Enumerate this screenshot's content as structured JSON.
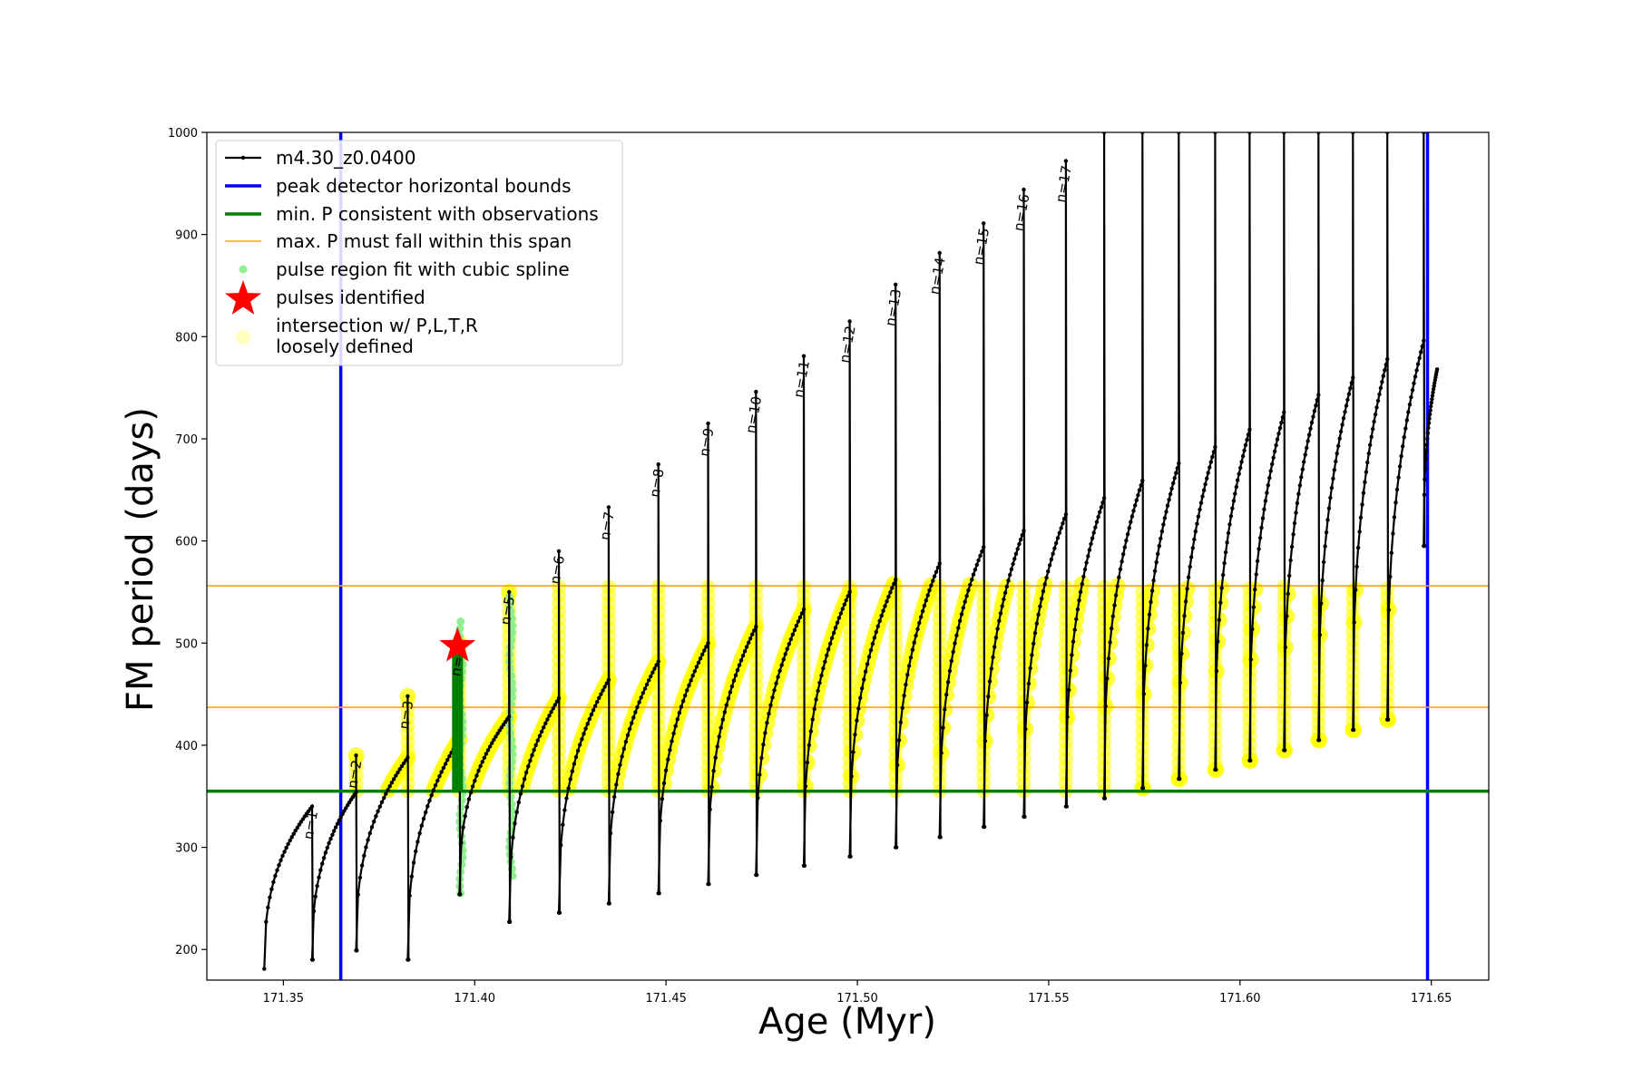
{
  "chart_data": {
    "type": "line",
    "xlabel": "Age (Myr)",
    "ylabel": "FM period (days)",
    "xlim": [
      171.33,
      171.665
    ],
    "ylim": [
      170,
      1000
    ],
    "x_ticks": [
      "171.35",
      "171.40",
      "171.45",
      "171.50",
      "171.55",
      "171.60",
      "171.65"
    ],
    "x_tick_values": [
      171.35,
      171.4,
      171.45,
      171.5,
      171.55,
      171.6,
      171.65
    ],
    "y_ticks": [
      "200",
      "300",
      "400",
      "500",
      "600",
      "700",
      "800",
      "900",
      "1000"
    ],
    "y_tick_values": [
      200,
      300,
      400,
      500,
      600,
      700,
      800,
      900,
      1000
    ],
    "grid": false,
    "legend_position": "top-left",
    "legend": [
      {
        "label": "m4.30_z0.0400",
        "style": "line-dot",
        "color": "#000000"
      },
      {
        "label": "peak detector horizontal bounds",
        "style": "line-thick",
        "color": "#0000ff"
      },
      {
        "label": "min. P consistent with observations",
        "style": "line-thick",
        "color": "#008000"
      },
      {
        "label": "max. P must fall within this span",
        "style": "line-thin",
        "color": "#ffa500"
      },
      {
        "label": "pulse region fit with cubic spline",
        "style": "dot",
        "color": "#90ee90"
      },
      {
        "label": "pulses identified",
        "style": "star",
        "color": "#ff0000"
      },
      {
        "label": "intersection w/ P,L,T,R\nloosely defined",
        "style": "big-dot",
        "color": "#ffffc0"
      }
    ],
    "reference_lines": {
      "vertical_bounds": [
        171.365,
        171.649
      ],
      "min_period": 355,
      "max_period_span": [
        437,
        556
      ]
    },
    "series_name": "m4.30_z0.0400",
    "pulses": [
      {
        "label": "n=1",
        "x_start": 171.345,
        "x_end": 171.3575,
        "min": 181,
        "base_peak": 340,
        "spike": 340
      },
      {
        "label": "n=2",
        "x_start": 171.3575,
        "x_end": 171.369,
        "min": 190,
        "base_peak": 354,
        "spike": 390
      },
      {
        "label": "n=3",
        "x_start": 171.369,
        "x_end": 171.3825,
        "min": 199,
        "base_peak": 388,
        "spike": 448
      },
      {
        "label": "n=4",
        "x_start": 171.3825,
        "x_end": 171.396,
        "min": 190,
        "base_peak": 406,
        "spike": 500
      },
      {
        "label": "n=5",
        "x_start": 171.396,
        "x_end": 171.409,
        "min": 254,
        "base_peak": 428,
        "spike": 550
      },
      {
        "label": "n=6",
        "x_start": 171.409,
        "x_end": 171.422,
        "min": 227,
        "base_peak": 446,
        "spike": 590
      },
      {
        "label": "n=7",
        "x_start": 171.422,
        "x_end": 171.435,
        "min": 236,
        "base_peak": 464,
        "spike": 633
      },
      {
        "label": "n=8",
        "x_start": 171.435,
        "x_end": 171.448,
        "min": 245,
        "base_peak": 482,
        "spike": 675
      },
      {
        "label": "n=9",
        "x_start": 171.448,
        "x_end": 171.461,
        "min": 255,
        "base_peak": 500,
        "spike": 715
      },
      {
        "label": "n=10",
        "x_start": 171.461,
        "x_end": 171.4735,
        "min": 264,
        "base_peak": 516,
        "spike": 746
      },
      {
        "label": "n=11",
        "x_start": 171.4735,
        "x_end": 171.486,
        "min": 273,
        "base_peak": 533,
        "spike": 781
      },
      {
        "label": "n=12",
        "x_start": 171.486,
        "x_end": 171.498,
        "min": 282,
        "base_peak": 550,
        "spike": 815
      },
      {
        "label": "n=13",
        "x_start": 171.498,
        "x_end": 171.51,
        "min": 291,
        "base_peak": 562,
        "spike": 851
      },
      {
        "label": "n=14",
        "x_start": 171.51,
        "x_end": 171.5215,
        "min": 300,
        "base_peak": 578,
        "spike": 882
      },
      {
        "label": "n=15",
        "x_start": 171.5215,
        "x_end": 171.533,
        "min": 310,
        "base_peak": 594,
        "spike": 911
      },
      {
        "label": "n=16",
        "x_start": 171.533,
        "x_end": 171.5435,
        "min": 320,
        "base_peak": 610,
        "spike": 944
      },
      {
        "label": "n=17",
        "x_start": 171.5435,
        "x_end": 171.5545,
        "min": 330,
        "base_peak": 626,
        "spike": 972
      },
      {
        "label": "",
        "x_start": 171.5545,
        "x_end": 171.5645,
        "min": 340,
        "base_peak": 642,
        "spike": 1000
      },
      {
        "label": "",
        "x_start": 171.5645,
        "x_end": 171.5745,
        "min": 348,
        "base_peak": 659,
        "spike": 1000
      },
      {
        "label": "",
        "x_start": 171.5745,
        "x_end": 171.584,
        "min": 358,
        "base_peak": 676,
        "spike": 1000
      },
      {
        "label": "",
        "x_start": 171.584,
        "x_end": 171.5935,
        "min": 367,
        "base_peak": 692,
        "spike": 1000
      },
      {
        "label": "",
        "x_start": 171.5935,
        "x_end": 171.6025,
        "min": 376,
        "base_peak": 709,
        "spike": 1000
      },
      {
        "label": "",
        "x_start": 171.6025,
        "x_end": 171.6115,
        "min": 385,
        "base_peak": 726,
        "spike": 1000
      },
      {
        "label": "",
        "x_start": 171.6115,
        "x_end": 171.6205,
        "min": 395,
        "base_peak": 743,
        "spike": 1000
      },
      {
        "label": "",
        "x_start": 171.6205,
        "x_end": 171.6295,
        "min": 405,
        "base_peak": 760,
        "spike": 1000
      },
      {
        "label": "",
        "x_start": 171.6295,
        "x_end": 171.6385,
        "min": 415,
        "base_peak": 778,
        "spike": 1000
      },
      {
        "label": "",
        "x_start": 171.6385,
        "x_end": 171.648,
        "min": 425,
        "base_peak": 796,
        "spike": 1000
      },
      {
        "label": "",
        "x_start": 171.648,
        "x_end": 171.6515,
        "min": 595,
        "base_peak": 768,
        "spike": 768
      }
    ],
    "identified_pulse": {
      "label": "n=4",
      "x": 171.3955,
      "y": 497
    }
  }
}
